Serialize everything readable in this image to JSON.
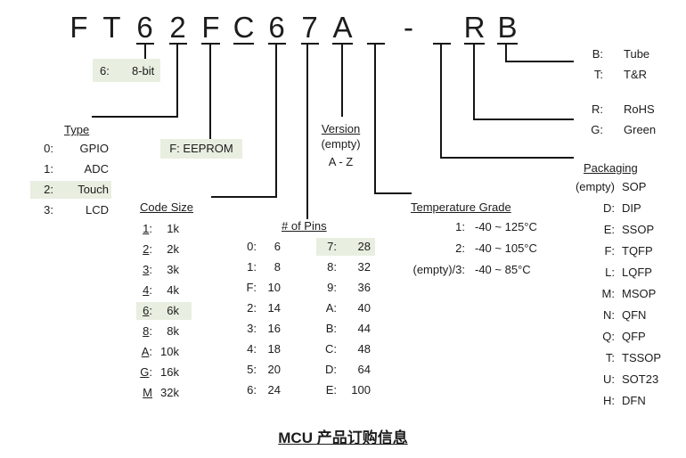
{
  "colors": {
    "highlight": "#e8efe1",
    "line": "#151515"
  },
  "part_number": {
    "chars": [
      {
        "ch": "F",
        "u": false
      },
      {
        "ch": "T",
        "u": false
      },
      {
        "ch": "6",
        "u": true
      },
      {
        "ch": "2",
        "u": true
      },
      {
        "ch": "F",
        "u": true
      },
      {
        "ch": "C",
        "u": true
      },
      {
        "ch": "6",
        "u": true
      },
      {
        "ch": "7",
        "u": true
      },
      {
        "ch": "A",
        "u": true
      },
      {
        "ch": "_",
        "u": true
      },
      {
        "ch": "-",
        "u": false
      },
      {
        "ch": "_",
        "u": true
      },
      {
        "ch": "R",
        "u": true
      },
      {
        "ch": "B",
        "u": true
      }
    ]
  },
  "bit_width": {
    "key": "6:",
    "value": "8-bit"
  },
  "eeprom": {
    "text": "F: EEPROM"
  },
  "type": {
    "title": "Type",
    "rows": [
      {
        "key": "0:",
        "value": "GPIO"
      },
      {
        "key": "1:",
        "value": "ADC"
      },
      {
        "key": "2:",
        "value": "Touch",
        "hl": true
      },
      {
        "key": "3:",
        "value": "LCD"
      }
    ]
  },
  "code_size": {
    "title": "Code Size",
    "rows": [
      {
        "key": "1",
        "sep": ":",
        "value": "1k"
      },
      {
        "key": "2",
        "sep": ":",
        "value": "2k"
      },
      {
        "key": "3",
        "sep": ":",
        "value": "3k"
      },
      {
        "key": "4",
        "sep": ":",
        "value": "4k"
      },
      {
        "key": "6",
        "sep": ":",
        "value": "6k",
        "hl": true
      },
      {
        "key": "8",
        "sep": ":",
        "value": "8k"
      },
      {
        "key": "A",
        "sep": ":",
        "value": "10k"
      },
      {
        "key": "G",
        "sep": ":",
        "value": "16k"
      },
      {
        "key": "M",
        "sep": "",
        "value": "32k"
      }
    ]
  },
  "pins": {
    "title": "# of Pins",
    "col1": [
      {
        "key": "0:",
        "value": "6"
      },
      {
        "key": "1:",
        "value": "8"
      },
      {
        "key": "F:",
        "value": "10"
      },
      {
        "key": "2:",
        "value": "14"
      },
      {
        "key": "3:",
        "value": "16"
      },
      {
        "key": "4:",
        "value": "18"
      },
      {
        "key": "5:",
        "value": "20"
      },
      {
        "key": "6:",
        "value": "24"
      }
    ],
    "col2": [
      {
        "key": "7:",
        "value": "28",
        "hl": true
      },
      {
        "key": "8:",
        "value": "32"
      },
      {
        "key": "9:",
        "value": "36"
      },
      {
        "key": "A:",
        "value": "40"
      },
      {
        "key": "B:",
        "value": "44"
      },
      {
        "key": "C:",
        "value": "48"
      },
      {
        "key": "D:",
        "value": "64"
      },
      {
        "key": "E:",
        "value": "100"
      }
    ]
  },
  "version": {
    "title": "Version",
    "lines": [
      "(empty)",
      "A - Z"
    ]
  },
  "temperature_grade": {
    "title": "Temperature Grade",
    "rows": [
      {
        "key": "1:",
        "value": "-40 ~ 125°C"
      },
      {
        "key": "2:",
        "value": "-40 ~ 105°C"
      },
      {
        "key": "(empty)/3:",
        "value": "-40 ~ 85°C"
      }
    ]
  },
  "carrier": {
    "rows": [
      {
        "key": "B:",
        "value": "Tube"
      },
      {
        "key": "T:",
        "value": "T&R"
      }
    ]
  },
  "rohs_green": {
    "rows": [
      {
        "key": "R:",
        "value": "RoHS"
      },
      {
        "key": "G:",
        "value": "Green"
      }
    ]
  },
  "packaging": {
    "title": "Packaging",
    "rows": [
      {
        "key": "(empty)",
        "value": "SOP"
      },
      {
        "key": "D:",
        "value": "DIP"
      },
      {
        "key": "E:",
        "value": "SSOP"
      },
      {
        "key": "F:",
        "value": "TQFP"
      },
      {
        "key": "L:",
        "value": "LQFP"
      },
      {
        "key": "M:",
        "value": "MSOP"
      },
      {
        "key": "N:",
        "value": "QFN"
      },
      {
        "key": "Q:",
        "value": "QFP"
      },
      {
        "key": "T:",
        "value": "TSSOP"
      },
      {
        "key": "U:",
        "value": "SOT23"
      },
      {
        "key": "H:",
        "value": "DFN"
      }
    ]
  },
  "footer": {
    "title": "MCU 产品订购信息"
  }
}
